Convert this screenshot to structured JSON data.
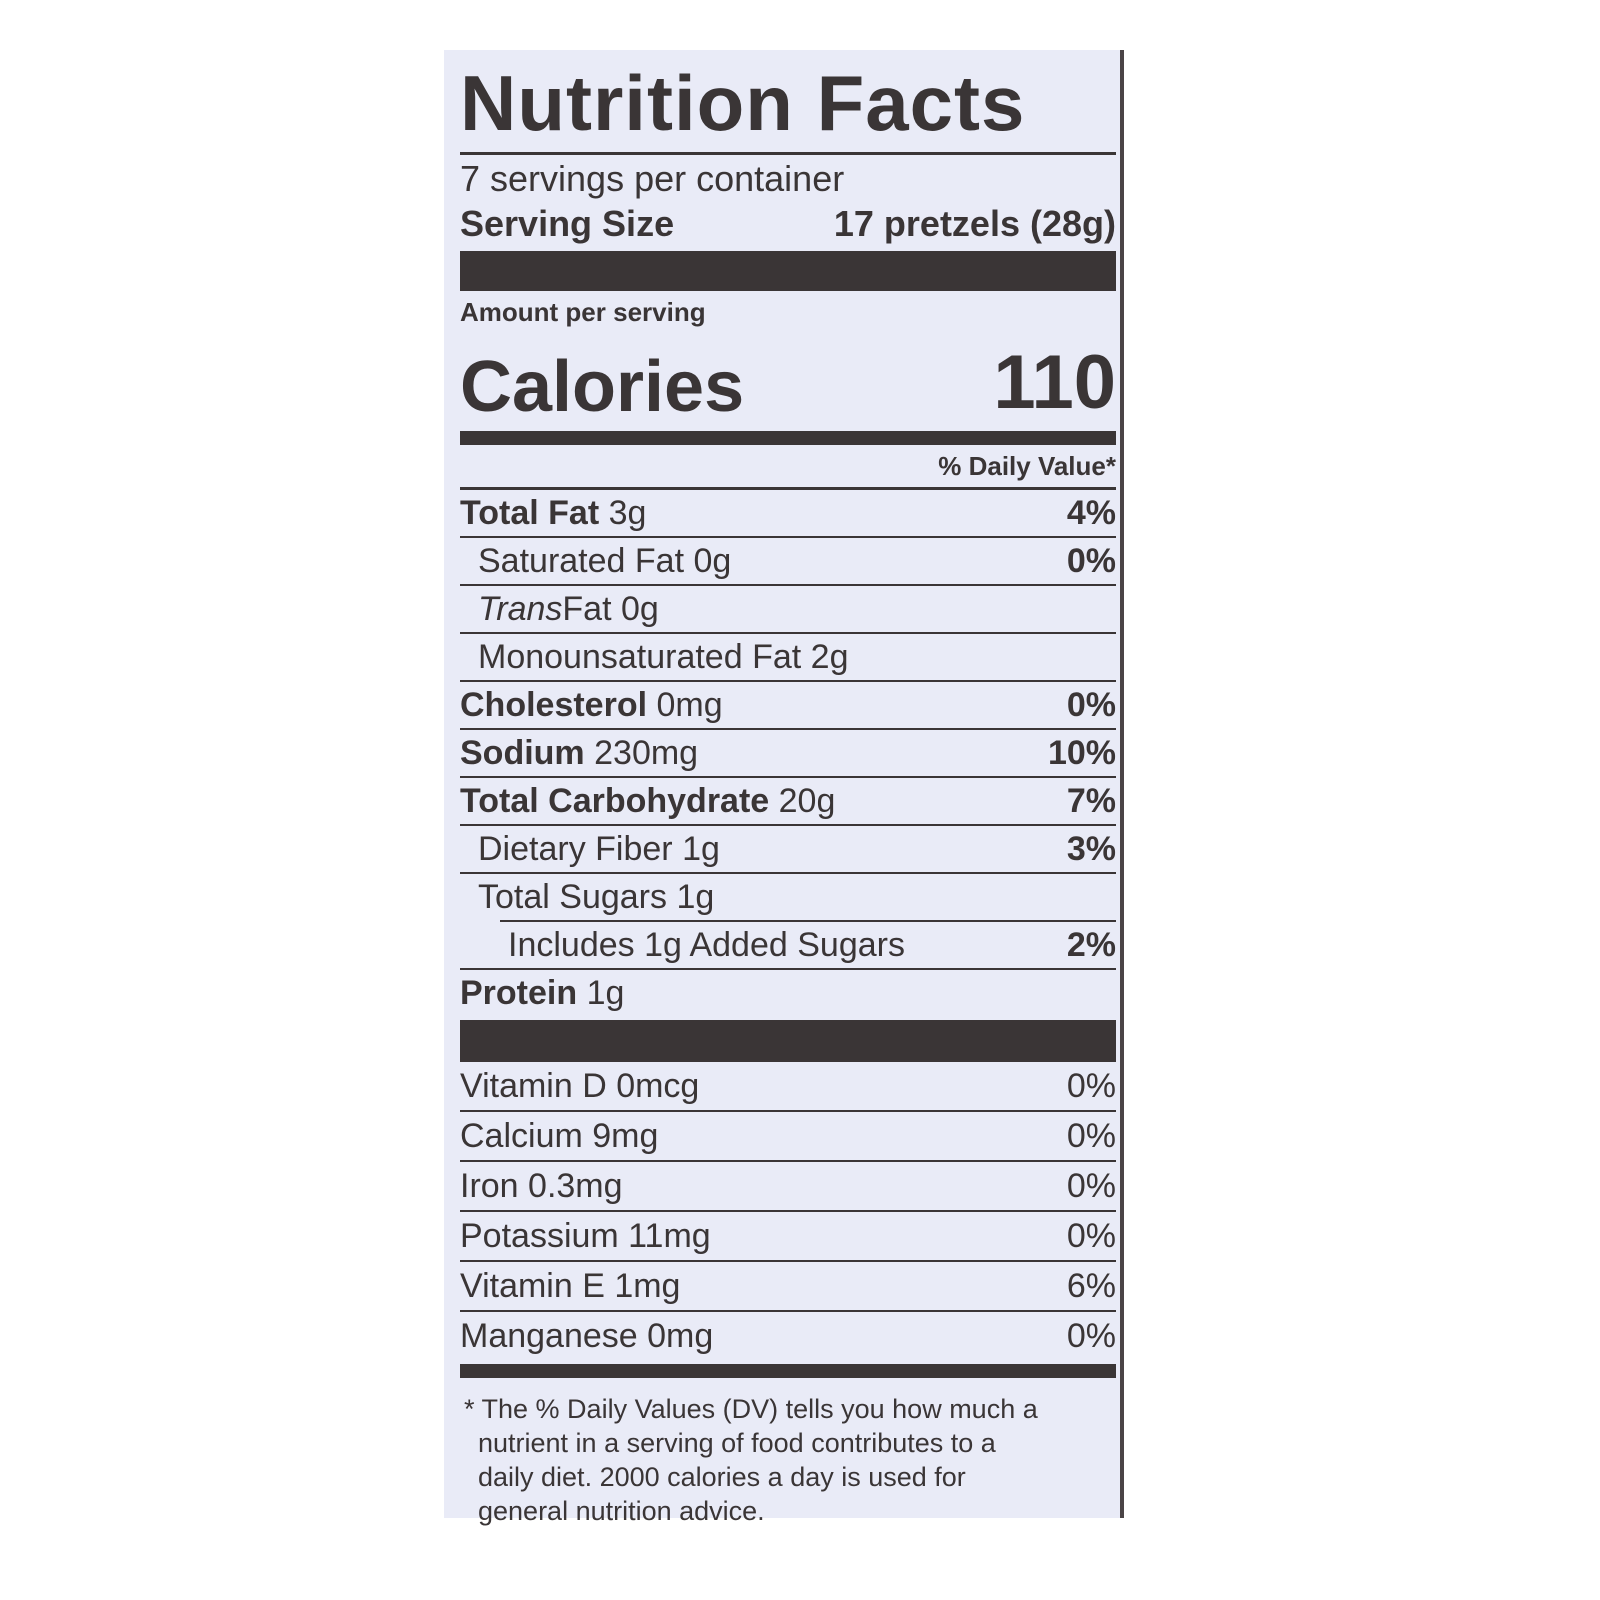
{
  "title": "Nutrition Facts",
  "servings_per_container": "7 servings per container",
  "serving_size_label": "Serving Size",
  "serving_size_value": "17 pretzels (28g)",
  "amount_per_serving": "Amount per serving",
  "calories_label": "Calories",
  "calories_value": "110",
  "daily_value_header": "% Daily Value*",
  "nutrients": [
    {
      "name": "Total Fat",
      "amount": "3g",
      "dv": "4%"
    },
    {
      "name": "Saturated Fat",
      "amount": "0g",
      "dv": "0%"
    },
    {
      "name": "Trans",
      "name2": "Fat",
      "amount": "0g",
      "dv": ""
    },
    {
      "name": "Monounsaturated Fat",
      "amount": "2g",
      "dv": ""
    },
    {
      "name": "Cholesterol",
      "amount": "0mg",
      "dv": "0%"
    },
    {
      "name": "Sodium",
      "amount": "230mg",
      "dv": "10%"
    },
    {
      "name": "Total Carbohydrate",
      "amount": "20g",
      "dv": "7%"
    },
    {
      "name": "Dietary Fiber",
      "amount": "1g",
      "dv": "3%"
    },
    {
      "name": "Total Sugars",
      "amount": "1g",
      "dv": ""
    },
    {
      "name": "Includes 1g Added Sugars",
      "amount": "",
      "dv": "2%"
    },
    {
      "name": "Protein",
      "amount": "1g",
      "dv": ""
    }
  ],
  "vitamins": [
    {
      "name": "Vitamin D 0mcg",
      "dv": "0%"
    },
    {
      "name": "Calcium 9mg",
      "dv": "0%"
    },
    {
      "name": "Iron 0.3mg",
      "dv": "0%"
    },
    {
      "name": "Potassium 11mg",
      "dv": "0%"
    },
    {
      "name": "Vitamin E 1mg",
      "dv": "6%"
    },
    {
      "name": "Manganese 0mg",
      "dv": "0%"
    }
  ],
  "footnote": "* The % Daily Values (DV) tells you how much a nutrient in a serving of food contributes to a daily diet. 2000 calories a day is used for general nutrition advice."
}
